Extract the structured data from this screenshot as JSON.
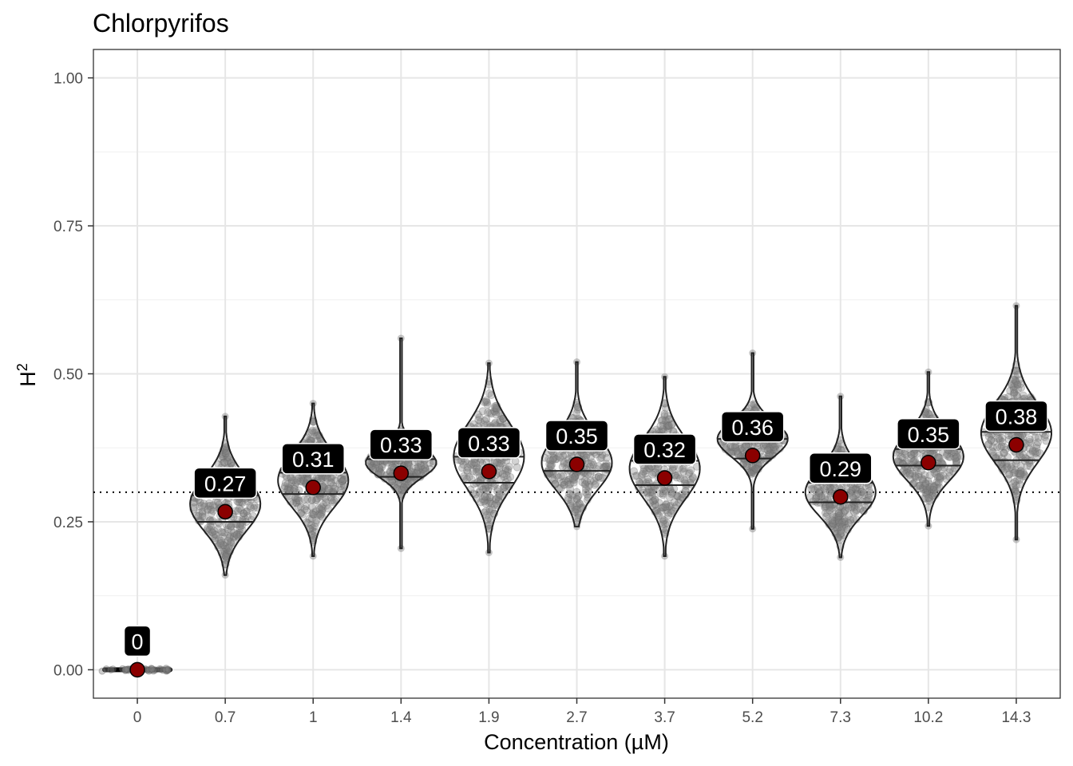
{
  "chart_data": {
    "type": "violin",
    "title": "Chlorpyrifos",
    "xlabel": "Concentration (µM)",
    "ylabel_base": "H",
    "ylabel_sup": "2",
    "ylim": [
      -0.048,
      1.048
    ],
    "yticks": [
      0,
      0.25,
      0.5,
      0.75,
      1
    ],
    "ytick_labels": [
      "0.00",
      "0.25",
      "0.50",
      "0.75",
      "1.00"
    ],
    "reference_line": 0.3,
    "categories": [
      "0",
      "0.7",
      "1",
      "1.4",
      "1.9",
      "2.7",
      "3.7",
      "5.2",
      "7.3",
      "10.2",
      "14.3"
    ],
    "means": [
      0,
      0.267,
      0.308,
      0.332,
      0.335,
      0.347,
      0.324,
      0.362,
      0.292,
      0.35,
      0.38
    ],
    "mean_labels": [
      "0",
      "0.27",
      "0.31",
      "0.33",
      "0.33",
      "0.35",
      "0.32",
      "0.36",
      "0.29",
      "0.35",
      "0.38"
    ],
    "min": [
      0,
      0.16,
      0.192,
      0.205,
      0.198,
      0.242,
      0.192,
      0.238,
      0.19,
      0.243,
      0.22
    ],
    "max": [
      0.07,
      0.428,
      0.45,
      0.56,
      0.518,
      0.52,
      0.495,
      0.535,
      0.462,
      0.503,
      0.615
    ],
    "quartile_low": [
      0,
      0.25,
      0.297,
      0.326,
      0.316,
      0.336,
      0.312,
      0.357,
      0.283,
      0.345,
      0.354
    ],
    "quartile_high": [
      0,
      0.295,
      0.333,
      0.356,
      0.36,
      0.373,
      0.353,
      0.39,
      0.316,
      0.373,
      0.402
    ],
    "center": [
      0,
      0.28,
      0.32,
      0.35,
      0.36,
      0.35,
      0.34,
      0.39,
      0.3,
      0.36,
      0.4
    ],
    "spread": [
      0.003,
      0.045,
      0.045,
      0.025,
      0.055,
      0.045,
      0.05,
      0.03,
      0.04,
      0.04,
      0.05
    ],
    "colors": {
      "mean_point": "#8b0000",
      "points": "#808080",
      "label_bg": "#000000",
      "label_text": "#ffffff"
    }
  }
}
